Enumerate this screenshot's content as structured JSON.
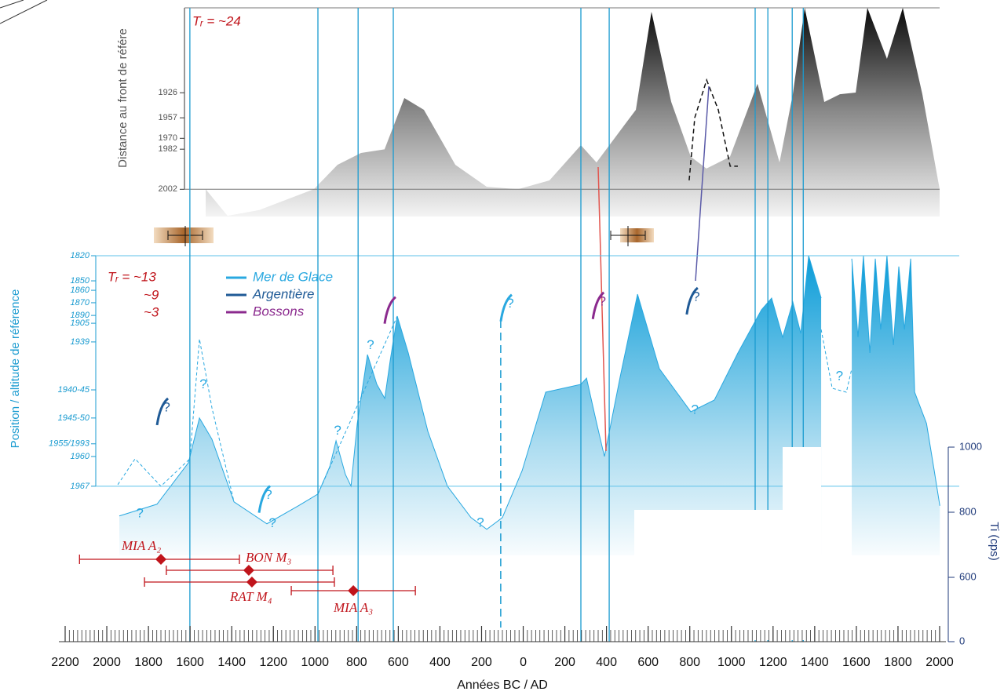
{
  "chart_data": {
    "type": "area",
    "x_label": "Années BC / AD",
    "xlim": [
      -2200,
      2000
    ],
    "xticks": [
      {
        "value": -2200,
        "label": "2200"
      },
      {
        "value": -2000,
        "label": "2000"
      },
      {
        "value": -1800,
        "label": "1800"
      },
      {
        "value": -1600,
        "label": "1600"
      },
      {
        "value": -1400,
        "label": "1400"
      },
      {
        "value": -1200,
        "label": "1200"
      },
      {
        "value": -1000,
        "label": "1000"
      },
      {
        "value": -800,
        "label": "800"
      },
      {
        "value": -600,
        "label": "600"
      },
      {
        "value": -400,
        "label": "400"
      },
      {
        "value": -200,
        "label": "200"
      },
      0,
      200,
      400,
      600,
      800,
      1000,
      1200,
      1400,
      1600,
      1800,
      2000
    ],
    "xminor": 20,
    "vlines": [
      -1601,
      -986,
      -793,
      -624,
      277,
      413,
      1114,
      1175,
      1292,
      1345
    ],
    "vline_dashed": -108,
    "top": {
      "y_label": "Distance au front de référe",
      "annotation": "Tᵣ = ~24",
      "ylim": [
        -15,
        100
      ],
      "yticks": [
        {
          "value": 53.2,
          "label": "1926"
        },
        {
          "value": 39.4,
          "label": "1957"
        },
        {
          "value": 28.1,
          "label": "1970"
        },
        {
          "value": 22.1,
          "label": "1982"
        },
        {
          "value": 0,
          "label": "2002"
        }
      ],
      "x": [
        -1525,
        -1420,
        -1269,
        -1005,
        -892,
        -779,
        -666,
        -571,
        -477,
        -326,
        -175,
        -25,
        126,
        277,
        352,
        484,
        541,
        616,
        711,
        805,
        880,
        993,
        1125,
        1231,
        1295,
        1352,
        1446,
        1521,
        1597,
        1653,
        1747,
        1823,
        1917,
        2000
      ],
      "values": [
        0,
        -14.6,
        -11.5,
        0.1,
        13.5,
        20,
        22,
        50.3,
        43.8,
        13.5,
        1.4,
        0,
        4.9,
        24.3,
        14.8,
        35.1,
        43.8,
        97.8,
        48.1,
        17.9,
        11.4,
        17.9,
        58.1,
        14.8,
        52.4,
        100,
        48.1,
        52.4,
        53.3,
        100,
        71.9,
        100,
        52.4,
        0.1
      ],
      "dashed": {
        "x": [
          797,
          824,
          881,
          937,
          994,
          1031
        ],
        "values": [
          4.9,
          39.5,
          60.2,
          43.8,
          12.7,
          12.7
        ]
      }
    },
    "bottom": {
      "y_label": "Position / altitude de référence",
      "annotations": [
        "Tᵣ = ~13",
        "~9",
        "~3"
      ],
      "ylim": [
        -30,
        100
      ],
      "yticks": [
        {
          "value": 100,
          "label": "1820"
        },
        {
          "value": 89.1,
          "label": "1850"
        },
        {
          "value": 85.0,
          "label": "1860"
        },
        {
          "value": 79.6,
          "label": "1870"
        },
        {
          "value": 74.1,
          "label": "1890"
        },
        {
          "value": 70.7,
          "label": "1905"
        },
        {
          "value": 62.6,
          "label": "1939"
        },
        {
          "value": 41.8,
          "label": "1940-45"
        },
        {
          "value": 29.6,
          "label": "1945-50"
        },
        {
          "value": 18.4,
          "label": "1955/1993"
        },
        {
          "value": 12.9,
          "label": "1960"
        },
        {
          "value": 0,
          "label": "1967"
        }
      ],
      "series": [
        {
          "name": "Mer de Glace",
          "color": "#29a8e0",
          "x": [
            -1940,
            -1759,
            -1608,
            -1555,
            -1495,
            -1389,
            -1231,
            -1080,
            -986,
            -929,
            -899,
            -854,
            -827,
            -797,
            -748,
            -703,
            -665,
            -639,
            -605,
            -552,
            -458,
            -364,
            -251,
            -175,
            -100,
            -5,
            108,
            277,
            304,
            353,
            390,
            466,
            549,
            654,
            805,
            918,
            1031,
            1144,
            1193,
            1246,
            1295,
            1333,
            1371,
            1431,
            1500,
            1578,
            1608,
            1634,
            1665,
            1691,
            1717,
            1747,
            1778,
            1804,
            1831,
            1861,
            1880,
            1937,
            1974,
            2001
          ],
          "values": [
            -12.9,
            -7.8,
            10.2,
            29.6,
            20.4,
            -6.8,
            -16.3,
            -8.5,
            -3.4,
            8.5,
            19.7,
            5.1,
            0,
            27.2,
            57.1,
            44.2,
            38.1,
            54.4,
            73.8,
            57.8,
            23.8,
            0,
            -13.6,
            -18.7,
            -13.6,
            6.8,
            40.8,
            44.2,
            46.9,
            27.2,
            12.9,
            47.6,
            83.3,
            51,
            32.3,
            37.4,
            57.8,
            76.5,
            81.6,
            64.6,
            79.9,
            66.3,
            100,
            81.6,
            null,
            98.7,
            64.7,
            100,
            57.8,
            98.7,
            68,
            100,
            61.2,
            95.3,
            68,
            98.7,
            40.8,
            27.2,
            6.8,
            -8.5
          ]
        },
        {
          "name": "Argentière",
          "color": "#1f5a96"
        },
        {
          "name": "Bossons",
          "color": "#8b2a8e"
        }
      ],
      "dashed": [
        {
          "x": [
            -1947,
            -1864,
            -1740,
            -1601,
            -1555,
            -1495,
            -1389
          ],
          "values": [
            0.7,
            11.9,
            0,
            11.9,
            63.9,
            34,
            -6.8
          ]
        },
        {
          "x": [
            -986,
            -605
          ],
          "values": [
            -3.4,
            73.8
          ]
        },
        {
          "x": [
            1431,
            1484,
            1552,
            1578
          ],
          "values": [
            68,
            42.5,
            40.8,
            51
          ]
        }
      ],
      "question_marks": [
        {
          "series": 1,
          "x": -1721,
          "y": 34,
          "label": "?",
          "arc": true
        },
        {
          "series": 0,
          "x": -1231,
          "y": -4,
          "label": "?",
          "arc": true
        },
        {
          "series": 0,
          "x": -1212,
          "y": -16.3,
          "label": "?"
        },
        {
          "series": 0,
          "x": -1849,
          "y": -12,
          "label": "?"
        },
        {
          "series": 0,
          "x": -1544,
          "y": 44,
          "label": "?"
        },
        {
          "series": 0,
          "x": -213,
          "y": -16,
          "label": "?"
        },
        {
          "series": 0,
          "x": 817,
          "y": 33,
          "label": "?"
        },
        {
          "series": 0,
          "x": 1511,
          "y": 47.6,
          "label": "?"
        },
        {
          "series": 2,
          "x": 372,
          "y": 80,
          "label": "?",
          "arc": true
        },
        {
          "series": 0,
          "x": -70,
          "y": 79,
          "label": "?",
          "arc": true
        },
        {
          "series": 1,
          "x": 823,
          "y": 82,
          "label": "?",
          "arc": true
        },
        {
          "series": 0,
          "x": -741,
          "y": 61,
          "label": "?"
        },
        {
          "series": 0,
          "x": -899,
          "y": 24,
          "label": "?"
        },
        {
          "series": 2,
          "x": -628,
          "y": 78,
          "label": "",
          "arc": true
        }
      ],
      "dates": [
        {
          "label": "MIA A₂",
          "value": -1740,
          "lo": -2131,
          "hi": -1363
        },
        {
          "label": "BON M₃",
          "value": -1318,
          "lo": -1714,
          "hi": -914
        },
        {
          "label": "RAT M₄",
          "value": -1303,
          "lo": -1819,
          "hi": -907
        },
        {
          "label": "MIA A₃",
          "value": -816,
          "lo": -1114,
          "hi": -518
        }
      ]
    },
    "y2_label": "Ti (cps)",
    "y2lim": [
      0,
      1000
    ],
    "y2break": 600,
    "y2ticks": [
      0,
      600,
      800,
      1000
    ]
  }
}
